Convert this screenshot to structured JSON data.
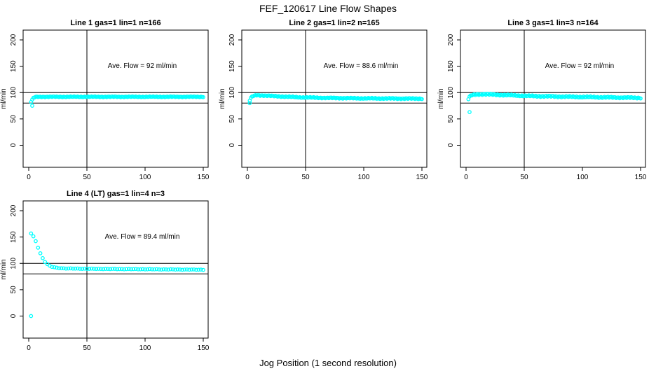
{
  "chart_data": {
    "type": "scatter",
    "title": "FEF_120617  Line Flow Shapes",
    "xlabel": "Jog Position (1 second resolution)",
    "ylabel": "ml/min",
    "point_color": "#00FFFF",
    "axis_color": "#000000",
    "xticks": [
      0,
      50,
      100,
      150
    ],
    "yticks": [
      0,
      50,
      100,
      150,
      200
    ],
    "xlim": [
      -5,
      155
    ],
    "ylim": [
      -42,
      219
    ],
    "grid": false,
    "legend": "none",
    "reference_lines": {
      "horizontal": [
        100,
        80
      ],
      "vertical": [
        50
      ]
    },
    "plots": [
      {
        "title": "Line 1 gas=1 lin=1 n=166",
        "annotation": "Ave. Flow =  92  ml/min",
        "ave_flow": 92,
        "n": 166,
        "series_anchors": [
          [
            2,
            82.5
          ],
          [
            3,
            86.5
          ],
          [
            4,
            89.5
          ],
          [
            5,
            91
          ],
          [
            6,
            91.8
          ],
          [
            8,
            92
          ],
          [
            150,
            92
          ]
        ],
        "outliers": [
          [
            3,
            75
          ]
        ],
        "point_step": 1,
        "jitter": 0.55
      },
      {
        "title": "Line 2 gas=1 lin=2 n=165",
        "annotation": "Ave. Flow =  88.6  ml/min",
        "ave_flow": 88.6,
        "n": 165,
        "series_anchors": [
          [
            2,
            85
          ],
          [
            3,
            90
          ],
          [
            5,
            93.5
          ],
          [
            8,
            95
          ],
          [
            14,
            94.5
          ],
          [
            25,
            93
          ],
          [
            45,
            91
          ],
          [
            70,
            89.8
          ],
          [
            100,
            89
          ],
          [
            150,
            88.5
          ]
        ],
        "outliers": [
          [
            2,
            80
          ]
        ],
        "point_step": 1,
        "jitter": 0.75
      },
      {
        "title": "Line 3 gas=1 lin=3 n=164",
        "annotation": "Ave. Flow =  92  ml/min",
        "ave_flow": 92,
        "n": 164,
        "series_anchors": [
          [
            2,
            88
          ],
          [
            3,
            92
          ],
          [
            5,
            95
          ],
          [
            9,
            96.5
          ],
          [
            15,
            97
          ],
          [
            30,
            95.5
          ],
          [
            55,
            93.5
          ],
          [
            90,
            92
          ],
          [
            120,
            91
          ],
          [
            150,
            90
          ]
        ],
        "outliers": [
          [
            3,
            63
          ]
        ],
        "point_step": 1,
        "jitter": 1.0
      },
      {
        "title": "Line 4 (LT) gas=1 lin=4 n=3",
        "annotation": "Ave. Flow =  89.4  ml/min",
        "ave_flow": 89.4,
        "n": 3,
        "series_anchors": [
          [
            2,
            157
          ],
          [
            4,
            151
          ],
          [
            6,
            142
          ],
          [
            8,
            130
          ],
          [
            10,
            119
          ],
          [
            12,
            110
          ],
          [
            14,
            103
          ],
          [
            16,
            98.5
          ],
          [
            18,
            95.5
          ],
          [
            20,
            93.5
          ],
          [
            23,
            92
          ],
          [
            26,
            91
          ],
          [
            30,
            90.5
          ],
          [
            40,
            90
          ],
          [
            60,
            89.5
          ],
          [
            90,
            89
          ],
          [
            120,
            88.5
          ],
          [
            150,
            88
          ]
        ],
        "outliers": [
          [
            2,
            0
          ]
        ],
        "point_step": 2,
        "jitter": 0.3
      }
    ]
  }
}
